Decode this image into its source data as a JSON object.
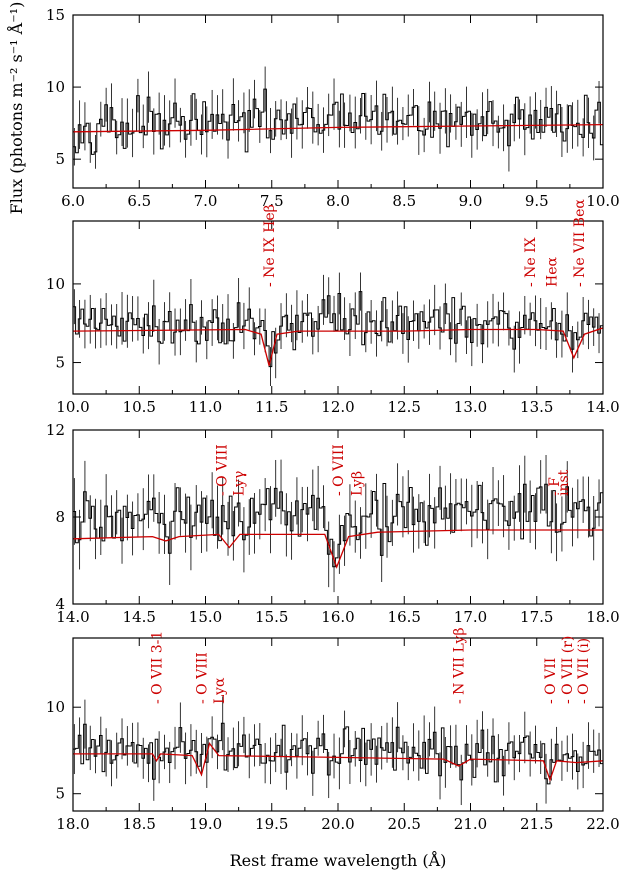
{
  "figure": {
    "ylabel": "Flux (photons m⁻² s⁻¹ Å⁻¹)",
    "xlabel": "Rest frame wavelength (Å)"
  },
  "colors": {
    "data": "#000000",
    "model": "#cc0000",
    "annotation": "#cc0000"
  },
  "chart_data": [
    {
      "type": "line",
      "xlim": [
        6.0,
        10.0
      ],
      "ylim": [
        3.0,
        15.0
      ],
      "xticks": [
        "6.0",
        "6.5",
        "7.0",
        "7.5",
        "8.0",
        "8.5",
        "9.0",
        "9.5",
        "10.0"
      ],
      "yticks": [
        "5",
        "10",
        "15"
      ],
      "series": [
        {
          "role": "data",
          "style": "histogram-with-errorbars",
          "base_level": 7.6,
          "noise": 1.1,
          "error_bar": 1.4
        },
        {
          "role": "model",
          "style": "line",
          "points": [
            [
              6.0,
              6.9
            ],
            [
              7.0,
              7.0
            ],
            [
              8.0,
              7.2
            ],
            [
              9.0,
              7.3
            ],
            [
              10.0,
              7.4
            ]
          ]
        }
      ],
      "annotations": []
    },
    {
      "type": "line",
      "xlim": [
        10.0,
        14.0
      ],
      "ylim": [
        3.0,
        14.0
      ],
      "xticks": [
        "10.0",
        "10.5",
        "11.0",
        "11.5",
        "12.0",
        "12.5",
        "13.0",
        "13.5",
        "14.0"
      ],
      "yticks": [
        "5",
        "10"
      ],
      "series": [
        {
          "role": "data",
          "style": "histogram-with-errorbars",
          "base_level": 7.2,
          "noise": 1.0,
          "error_bar": 1.3
        },
        {
          "role": "model",
          "style": "line",
          "points": [
            [
              10.0,
              7.0
            ],
            [
              11.3,
              7.1
            ],
            [
              11.42,
              6.8
            ],
            [
              11.48,
              4.8
            ],
            [
              11.54,
              6.8
            ],
            [
              11.7,
              7.0
            ],
            [
              12.5,
              7.0
            ],
            [
              13.0,
              7.1
            ],
            [
              13.5,
              7.1
            ],
            [
              13.7,
              7.0
            ],
            [
              13.78,
              5.3
            ],
            [
              13.86,
              6.8
            ],
            [
              14.0,
              7.2
            ]
          ]
        }
      ],
      "annotations": [
        {
          "x": 11.48,
          "text": "- Ne IX Heβ"
        },
        {
          "x": 13.45,
          "text": "- Ne IX"
        },
        {
          "x": 13.61,
          "text": "Heα"
        },
        {
          "x": 13.82,
          "text": "- Ne VII Beα"
        }
      ]
    },
    {
      "type": "line",
      "xlim": [
        14.0,
        18.0
      ],
      "ylim": [
        4.0,
        12.0
      ],
      "xticks": [
        "14.0",
        "14.5",
        "15.0",
        "15.5",
        "16.0",
        "16.5",
        "17.0",
        "17.5",
        "18.0"
      ],
      "yticks": [
        "4",
        "8",
        "12"
      ],
      "series": [
        {
          "role": "data",
          "style": "histogram-with-errorbars",
          "base_level": 7.8,
          "noise": 0.9,
          "error_bar": 1.2
        },
        {
          "role": "model",
          "style": "line",
          "points": [
            [
              14.0,
              7.0
            ],
            [
              14.6,
              7.1
            ],
            [
              14.7,
              6.9
            ],
            [
              14.8,
              7.1
            ],
            [
              15.1,
              7.2
            ],
            [
              15.18,
              6.6
            ],
            [
              15.26,
              7.2
            ],
            [
              15.9,
              7.2
            ],
            [
              15.99,
              5.7
            ],
            [
              16.08,
              7.1
            ],
            [
              16.3,
              7.3
            ],
            [
              17.0,
              7.4
            ],
            [
              18.0,
              7.4
            ]
          ]
        }
      ],
      "annotations": [
        {
          "x": 15.12,
          "text": "- O VIII"
        },
        {
          "x": 15.25,
          "text": "Lyγ"
        },
        {
          "x": 16.0,
          "text": "- O VIII"
        },
        {
          "x": 16.14,
          "text": "Lyβ"
        },
        {
          "x": 17.63,
          "text": "- F"
        },
        {
          "x": 17.7,
          "text": "inst"
        }
      ]
    },
    {
      "type": "line",
      "xlim": [
        18.0,
        22.0
      ],
      "ylim": [
        4.0,
        14.0
      ],
      "xticks": [
        "18.0",
        "18.5",
        "19.0",
        "19.5",
        "20.0",
        "20.5",
        "21.0",
        "21.5",
        "22.0"
      ],
      "yticks": [
        "5",
        "10"
      ],
      "series": [
        {
          "role": "data",
          "style": "histogram-with-errorbars",
          "base_level": 7.3,
          "noise": 0.9,
          "error_bar": 1.2
        },
        {
          "role": "model",
          "style": "line",
          "points": [
            [
              18.0,
              7.3
            ],
            [
              18.6,
              7.3
            ],
            [
              18.63,
              6.9
            ],
            [
              18.66,
              7.3
            ],
            [
              18.9,
              7.2
            ],
            [
              18.97,
              6.1
            ],
            [
              19.03,
              7.9
            ],
            [
              19.1,
              7.2
            ],
            [
              20.0,
              7.1
            ],
            [
              20.8,
              7.0
            ],
            [
              20.91,
              6.6
            ],
            [
              21.0,
              7.0
            ],
            [
              21.55,
              6.9
            ],
            [
              21.6,
              5.8
            ],
            [
              21.65,
              6.9
            ],
            [
              21.8,
              6.8
            ],
            [
              22.0,
              6.9
            ]
          ]
        }
      ],
      "annotations": [
        {
          "x": 18.63,
          "text": "- O VII 3-1"
        },
        {
          "x": 18.97,
          "text": "- O VIII"
        },
        {
          "x": 19.1,
          "text": "Lyα"
        },
        {
          "x": 20.91,
          "text": "- N VII Lyβ"
        },
        {
          "x": 21.6,
          "text": "- O VII"
        },
        {
          "x": 21.73,
          "text": "- O VII (r)"
        },
        {
          "x": 21.85,
          "text": "- O VII (i)"
        }
      ]
    }
  ]
}
